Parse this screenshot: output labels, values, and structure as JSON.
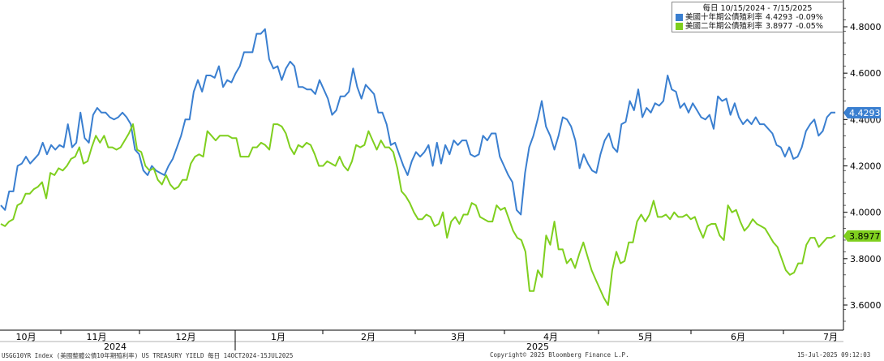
{
  "legend": {
    "period": "每日 10/15/2024 - 7/15/2025",
    "items": [
      {
        "name": "美國十年期公債殖利率",
        "value": "4.4293",
        "change": "-0.09%",
        "color": "#3a7fd0"
      },
      {
        "name": "美國二年期公債殖利率",
        "value": "3.8977",
        "change": "-0.05%",
        "color": "#7fcf1e"
      }
    ]
  },
  "footer": {
    "left": "USGG10YR Index (美國整體公債10年期殖利率) US TREASURY YIELD  每日 14OCT2024-15JUL2025",
    "center": "Copyright© 2025 Bloomberg Finance L.P.",
    "right": "15-Jul-2025 09:12:03"
  },
  "chart_data": {
    "type": "line",
    "y_axis": {
      "ticks": [
        "3.6000",
        "3.8000",
        "4.0000",
        "4.2000",
        "4.4000",
        "4.6000",
        "4.8000"
      ],
      "ylim": [
        3.53,
        4.92
      ],
      "position": "right",
      "grid": false
    },
    "x_axis": {
      "months": [
        "10月",
        "11月",
        "12月",
        "1月",
        "2月",
        "3月",
        "4月",
        "5月",
        "6月",
        "7月"
      ],
      "years": [
        "2024",
        "2025"
      ]
    },
    "last_value_labels": [
      "4.4293",
      "3.8977"
    ],
    "series": [
      {
        "name": "美國十年期公債殖利率",
        "color": "#3a7fd0",
        "values": [
          4.03,
          4.01,
          4.09,
          4.09,
          4.2,
          4.21,
          4.24,
          4.21,
          4.23,
          4.25,
          4.3,
          4.25,
          4.29,
          4.27,
          4.29,
          4.28,
          4.38,
          4.28,
          4.3,
          4.43,
          4.32,
          4.3,
          4.42,
          4.45,
          4.43,
          4.43,
          4.41,
          4.4,
          4.41,
          4.43,
          4.41,
          4.38,
          4.27,
          4.25,
          4.18,
          4.16,
          4.2,
          4.18,
          4.17,
          4.16,
          4.2,
          4.23,
          4.28,
          4.33,
          4.4,
          4.4,
          4.52,
          4.57,
          4.52,
          4.59,
          4.59,
          4.58,
          4.63,
          4.54,
          4.57,
          4.56,
          4.6,
          4.63,
          4.69,
          4.69,
          4.69,
          4.77,
          4.77,
          4.79,
          4.66,
          4.62,
          4.63,
          4.57,
          4.62,
          4.65,
          4.63,
          4.54,
          4.54,
          4.53,
          4.53,
          4.51,
          4.57,
          4.53,
          4.49,
          4.42,
          4.44,
          4.5,
          4.5,
          4.52,
          4.62,
          4.54,
          4.49,
          4.55,
          4.53,
          4.51,
          4.43,
          4.43,
          4.38,
          4.29,
          4.3,
          4.25,
          4.2,
          4.16,
          4.22,
          4.26,
          4.24,
          4.26,
          4.29,
          4.2,
          4.3,
          4.21,
          4.29,
          4.25,
          4.31,
          4.29,
          4.31,
          4.31,
          4.25,
          4.24,
          4.25,
          4.33,
          4.31,
          4.34,
          4.34,
          4.24,
          4.2,
          4.16,
          4.13,
          4.01,
          3.99,
          4.17,
          4.28,
          4.33,
          4.4,
          4.48,
          4.37,
          4.33,
          4.27,
          4.33,
          4.41,
          4.4,
          4.37,
          4.31,
          4.19,
          4.25,
          4.21,
          4.18,
          4.17,
          4.25,
          4.31,
          4.34,
          4.28,
          4.26,
          4.38,
          4.39,
          4.48,
          4.44,
          4.53,
          4.41,
          4.45,
          4.43,
          4.47,
          4.46,
          4.48,
          4.59,
          4.53,
          4.52,
          4.45,
          4.47,
          4.43,
          4.47,
          4.44,
          4.41,
          4.4,
          4.42,
          4.36,
          4.5,
          4.48,
          4.49,
          4.42,
          4.47,
          4.41,
          4.38,
          4.4,
          4.38,
          4.41,
          4.38,
          4.38,
          4.36,
          4.34,
          4.29,
          4.28,
          4.24,
          4.28,
          4.23,
          4.24,
          4.28,
          4.35,
          4.38,
          4.4,
          4.33,
          4.35,
          4.41,
          4.43,
          4.43
        ]
      },
      {
        "name": "美國二年期公債殖利率",
        "color": "#7fcf1e",
        "values": [
          3.95,
          3.94,
          3.96,
          3.97,
          4.03,
          4.04,
          4.08,
          4.08,
          4.1,
          4.11,
          4.13,
          4.06,
          4.17,
          4.16,
          4.19,
          4.18,
          4.2,
          4.23,
          4.24,
          4.28,
          4.21,
          4.22,
          4.28,
          4.33,
          4.3,
          4.33,
          4.28,
          4.28,
          4.27,
          4.28,
          4.31,
          4.34,
          4.38,
          4.27,
          4.26,
          4.2,
          4.18,
          4.19,
          4.14,
          4.12,
          4.16,
          4.12,
          4.1,
          4.11,
          4.14,
          4.14,
          4.21,
          4.24,
          4.25,
          4.24,
          4.35,
          4.33,
          4.31,
          4.33,
          4.33,
          4.33,
          4.32,
          4.32,
          4.24,
          4.24,
          4.24,
          4.28,
          4.28,
          4.3,
          4.29,
          4.27,
          4.38,
          4.38,
          4.37,
          4.34,
          4.28,
          4.25,
          4.29,
          4.28,
          4.3,
          4.29,
          4.25,
          4.2,
          4.2,
          4.22,
          4.21,
          4.2,
          4.24,
          4.2,
          4.18,
          4.22,
          4.29,
          4.28,
          4.29,
          4.35,
          4.31,
          4.27,
          4.31,
          4.28,
          4.28,
          4.26,
          4.19,
          4.09,
          4.07,
          4.04,
          4.0,
          3.97,
          3.97,
          3.99,
          3.98,
          3.94,
          3.95,
          4.0,
          3.89,
          3.96,
          3.98,
          3.95,
          3.99,
          3.99,
          4.04,
          4.03,
          3.98,
          3.97,
          3.96,
          3.96,
          4.03,
          4.01,
          4.02,
          3.97,
          3.92,
          3.89,
          3.88,
          3.83,
          3.66,
          3.66,
          3.75,
          3.72,
          3.9,
          3.86,
          3.96,
          3.84,
          3.84,
          3.78,
          3.8,
          3.76,
          3.82,
          3.87,
          3.81,
          3.75,
          3.71,
          3.67,
          3.63,
          3.6,
          3.75,
          3.83,
          3.78,
          3.79,
          3.87,
          3.87,
          3.96,
          3.99,
          3.96,
          3.99,
          4.05,
          3.98,
          3.98,
          3.99,
          3.97,
          4.0,
          3.98,
          3.98,
          3.99,
          3.97,
          3.98,
          3.93,
          3.89,
          3.94,
          3.95,
          3.95,
          3.9,
          3.88,
          4.03,
          4.0,
          4.01,
          3.96,
          3.92,
          3.94,
          3.97,
          3.95,
          3.94,
          3.93,
          3.9,
          3.87,
          3.85,
          3.8,
          3.75,
          3.73,
          3.74,
          3.78,
          3.78,
          3.86,
          3.89,
          3.89,
          3.85,
          3.87,
          3.89,
          3.89,
          3.9
        ]
      }
    ]
  }
}
